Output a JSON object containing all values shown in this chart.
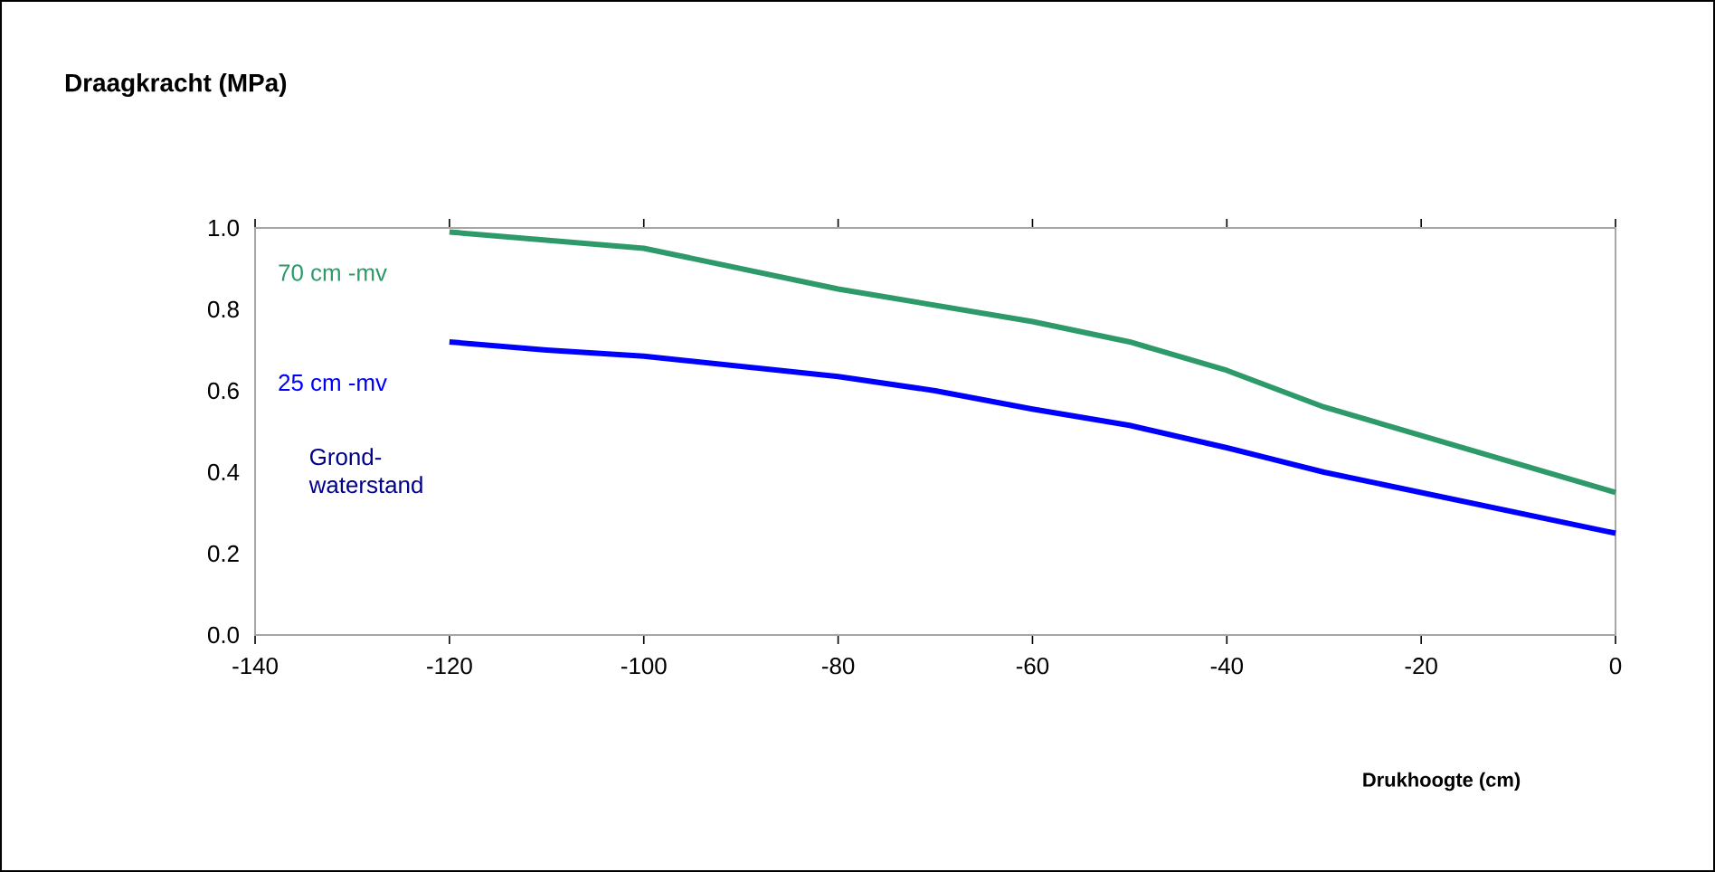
{
  "chart_data": {
    "type": "line",
    "title": "Draagkracht (MPa)",
    "xlabel": "Drukhoogte (cm)",
    "legend_title": "Grond-waterstand",
    "x": [
      -120,
      -110,
      -100,
      -90,
      -80,
      -70,
      -60,
      -50,
      -40,
      -30,
      -20,
      -10,
      0
    ],
    "series": [
      {
        "name": "70 cm -mv",
        "color": "#2e9a6a",
        "values": [
          0.99,
          0.97,
          0.95,
          0.9,
          0.85,
          0.81,
          0.77,
          0.72,
          0.65,
          0.56,
          0.49,
          0.42,
          0.35
        ]
      },
      {
        "name": "25 cm -mv",
        "color": "#0000ff",
        "values": [
          0.72,
          0.7,
          0.685,
          0.66,
          0.635,
          0.6,
          0.555,
          0.515,
          0.46,
          0.4,
          0.35,
          0.3,
          0.25
        ]
      }
    ],
    "xlim": [
      -140,
      0
    ],
    "xticks": [
      -140,
      -120,
      -100,
      -80,
      -60,
      -40,
      -20,
      0
    ],
    "ylim": [
      0,
      1
    ],
    "yticks": [
      {
        "value": 0,
        "label": "0.0"
      },
      {
        "value": 0.2,
        "label": "0.2"
      },
      {
        "value": 0.4,
        "label": "0.4"
      },
      {
        "value": 0.6,
        "label": "0.6"
      },
      {
        "value": 0.8,
        "label": "0.8"
      },
      {
        "value": 1,
        "label": "1.0"
      }
    ],
    "grid": false,
    "legend": "left",
    "line_style": "solid",
    "marker": "none"
  }
}
